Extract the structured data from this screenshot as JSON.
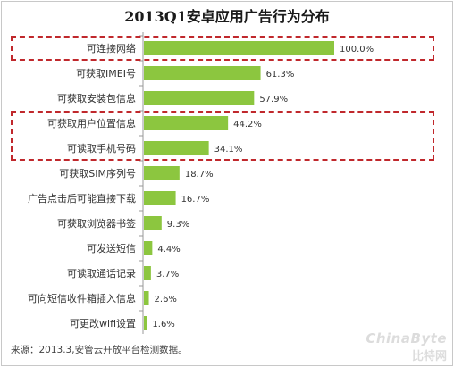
{
  "chart_data": {
    "type": "bar",
    "orientation": "horizontal",
    "title": "2013Q1安卓应用广告行为分布",
    "categories": [
      "可连接网络",
      "可获取IMEI号",
      "可获取安装包信息",
      "可获取用户位置信息",
      "可读取手机号码",
      "可获取SIM序列号",
      "广告点击后可能直接下载",
      "可获取浏览器书签",
      "可发送短信",
      "可读取通话记录",
      "可向短信收件箱插入信息",
      "可更改wifi设置"
    ],
    "values": [
      100.0,
      61.3,
      57.9,
      44.2,
      34.1,
      18.7,
      16.7,
      9.3,
      4.4,
      3.7,
      2.6,
      1.6
    ],
    "value_labels": [
      "100.0%",
      "61.3%",
      "57.9%",
      "44.2%",
      "34.1%",
      "18.7%",
      "16.7%",
      "9.3%",
      "4.4%",
      "3.7%",
      "2.6%",
      "1.6%"
    ],
    "xlim": [
      0,
      100
    ],
    "grid": false,
    "bar_color": "#8cc63f",
    "highlight_color": "#c0282c",
    "highlight_groups": [
      [
        0
      ],
      [
        3,
        4
      ]
    ]
  },
  "source": "来源：2013.3,安管云开放平台检测数据。",
  "watermark": {
    "line1": "ChinaByte",
    "line2": "比特网"
  }
}
